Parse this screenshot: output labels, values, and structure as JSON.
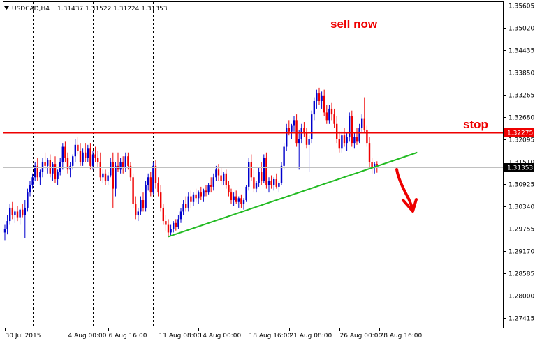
{
  "header": {
    "symbol": "USDCAD,H4",
    "ohlc": "1.31437 1.31522 1.31224 1.31353"
  },
  "colors": {
    "bull": "#0000cc",
    "bear": "#ee0000",
    "stop_line": "#ee0000",
    "trend_line": "#22bb22",
    "current_price_line": "#c0c0c0",
    "arrow": "#ee0000",
    "annotation": "#ee0000"
  },
  "chart_data": {
    "type": "candlestick",
    "timeframe": "H4",
    "ylim": [
      1.2715,
      1.357
    ],
    "y_ticks": [
      "1.35605",
      "1.35020",
      "1.34435",
      "1.33850",
      "1.33265",
      "1.32680",
      "1.32095",
      "1.31510",
      "1.30925",
      "1.30340",
      "1.29755",
      "1.29170",
      "1.28585",
      "1.28000",
      "1.27415"
    ],
    "x_ticks": [
      {
        "label": "30 Jul 2015",
        "bar": 0
      },
      {
        "label": "4 Aug 00:00",
        "bar": 25
      },
      {
        "label": "6 Aug 16:00",
        "bar": 41
      },
      {
        "label": "11 Aug 08:00",
        "bar": 61
      },
      {
        "label": "14 Aug 00:00",
        "bar": 77
      },
      {
        "label": "18 Aug 16:00",
        "bar": 97
      },
      {
        "label": "21 Aug 08:00",
        "bar": 113
      },
      {
        "label": "26 Aug 00:00",
        "bar": 133
      },
      {
        "label": "28 Aug 16:00",
        "bar": 149
      }
    ],
    "separator_bars": [
      11,
      35,
      59,
      83,
      107,
      131,
      155,
      190
    ],
    "stop_level": {
      "label": "1.32275",
      "price": 1.32275
    },
    "current_price": {
      "label": "1.31353",
      "price": 1.31353
    },
    "trendline": {
      "start": {
        "bar": 65,
        "price": 1.2954
      },
      "end": {
        "bar": 164,
        "price": 1.3175
      }
    },
    "annotations": [
      {
        "key": "sell",
        "text": "sell now"
      },
      {
        "key": "stop",
        "text": "stop"
      }
    ],
    "candles": [
      [
        1.2965,
        1.2985,
        1.2945,
        1.2975
      ],
      [
        1.2975,
        1.301,
        1.296,
        1.2995
      ],
      [
        1.2995,
        1.304,
        1.2985,
        1.303
      ],
      [
        1.303,
        1.3045,
        1.3,
        1.301
      ],
      [
        1.301,
        1.3025,
        1.299,
        1.302
      ],
      [
        1.302,
        1.3035,
        1.2995,
        1.3005
      ],
      [
        1.3005,
        1.303,
        1.2985,
        1.3025
      ],
      [
        1.3025,
        1.304,
        1.3005,
        1.301
      ],
      [
        1.301,
        1.305,
        1.295,
        1.303
      ],
      [
        1.303,
        1.308,
        1.302,
        1.307
      ],
      [
        1.307,
        1.31,
        1.306,
        1.309
      ],
      [
        1.309,
        1.312,
        1.308,
        1.311
      ],
      [
        1.311,
        1.315,
        1.31,
        1.314
      ],
      [
        1.314,
        1.316,
        1.31,
        1.311
      ],
      [
        1.311,
        1.313,
        1.309,
        1.3125
      ],
      [
        1.3125,
        1.316,
        1.311,
        1.315
      ],
      [
        1.315,
        1.3175,
        1.313,
        1.314
      ],
      [
        1.314,
        1.316,
        1.312,
        1.3155
      ],
      [
        1.3155,
        1.317,
        1.311,
        1.312
      ],
      [
        1.312,
        1.315,
        1.31,
        1.3145
      ],
      [
        1.3145,
        1.3165,
        1.3095,
        1.3105
      ],
      [
        1.3105,
        1.313,
        1.309,
        1.3125
      ],
      [
        1.3125,
        1.316,
        1.3115,
        1.315
      ],
      [
        1.315,
        1.32,
        1.313,
        1.319
      ],
      [
        1.319,
        1.3205,
        1.315,
        1.316
      ],
      [
        1.316,
        1.3175,
        1.312,
        1.313
      ],
      [
        1.313,
        1.315,
        1.311,
        1.314
      ],
      [
        1.314,
        1.317,
        1.313,
        1.3165
      ],
      [
        1.3165,
        1.321,
        1.315,
        1.3195
      ],
      [
        1.3195,
        1.3215,
        1.317,
        1.318
      ],
      [
        1.318,
        1.32,
        1.314,
        1.315
      ],
      [
        1.315,
        1.3185,
        1.314,
        1.3175
      ],
      [
        1.3175,
        1.32,
        1.315,
        1.316
      ],
      [
        1.316,
        1.3195,
        1.315,
        1.3185
      ],
      [
        1.3185,
        1.32,
        1.313,
        1.314
      ],
      [
        1.314,
        1.318,
        1.313,
        1.317
      ],
      [
        1.317,
        1.319,
        1.315,
        1.316
      ],
      [
        1.316,
        1.318,
        1.3135,
        1.315
      ],
      [
        1.315,
        1.3175,
        1.31,
        1.311
      ],
      [
        1.311,
        1.313,
        1.3095,
        1.312
      ],
      [
        1.312,
        1.313,
        1.309,
        1.31
      ],
      [
        1.31,
        1.3125,
        1.309,
        1.3115
      ],
      [
        1.3115,
        1.316,
        1.311,
        1.315
      ],
      [
        1.315,
        1.3175,
        1.303,
        1.308
      ],
      [
        1.308,
        1.315,
        1.306,
        1.314
      ],
      [
        1.314,
        1.3175,
        1.3125,
        1.313
      ],
      [
        1.313,
        1.316,
        1.312,
        1.315
      ],
      [
        1.315,
        1.3165,
        1.312,
        1.3135
      ],
      [
        1.3135,
        1.3175,
        1.3125,
        1.3165
      ],
      [
        1.3165,
        1.3175,
        1.313,
        1.314
      ],
      [
        1.314,
        1.315,
        1.31,
        1.311
      ],
      [
        1.311,
        1.312,
        1.303,
        1.304
      ],
      [
        1.304,
        1.306,
        1.3,
        1.301
      ],
      [
        1.301,
        1.303,
        1.2995,
        1.302
      ],
      [
        1.302,
        1.306,
        1.301,
        1.305
      ],
      [
        1.305,
        1.307,
        1.302,
        1.303
      ],
      [
        1.303,
        1.31,
        1.302,
        1.309
      ],
      [
        1.309,
        1.312,
        1.3075,
        1.311
      ],
      [
        1.311,
        1.3125,
        1.306,
        1.307
      ],
      [
        1.307,
        1.315,
        1.3065,
        1.314
      ],
      [
        1.314,
        1.3155,
        1.308,
        1.3095
      ],
      [
        1.3095,
        1.311,
        1.306,
        1.307
      ],
      [
        1.307,
        1.309,
        1.302,
        1.303
      ],
      [
        1.303,
        1.304,
        1.2985,
        1.2995
      ],
      [
        1.2995,
        1.301,
        1.297,
        1.2985
      ],
      [
        1.2985,
        1.3,
        1.2955,
        1.2965
      ],
      [
        1.2965,
        1.2985,
        1.2955,
        1.2975
      ],
      [
        1.2975,
        1.2995,
        1.2965,
        1.299
      ],
      [
        1.299,
        1.3,
        1.297,
        1.298
      ],
      [
        1.298,
        1.301,
        1.2975,
        1.3
      ],
      [
        1.3,
        1.303,
        1.299,
        1.302
      ],
      [
        1.302,
        1.305,
        1.301,
        1.304
      ],
      [
        1.304,
        1.306,
        1.302,
        1.303
      ],
      [
        1.303,
        1.307,
        1.302,
        1.306
      ],
      [
        1.306,
        1.3075,
        1.303,
        1.3045
      ],
      [
        1.3045,
        1.307,
        1.3035,
        1.3065
      ],
      [
        1.3065,
        1.308,
        1.3045,
        1.3055
      ],
      [
        1.3055,
        1.3075,
        1.304,
        1.307
      ],
      [
        1.307,
        1.3085,
        1.305,
        1.306
      ],
      [
        1.306,
        1.308,
        1.3045,
        1.3075
      ],
      [
        1.3075,
        1.309,
        1.306,
        1.307
      ],
      [
        1.307,
        1.3095,
        1.3065,
        1.309
      ],
      [
        1.309,
        1.311,
        1.307,
        1.3085
      ],
      [
        1.3085,
        1.312,
        1.3075,
        1.311
      ],
      [
        1.311,
        1.314,
        1.31,
        1.313
      ],
      [
        1.313,
        1.3145,
        1.31,
        1.3115
      ],
      [
        1.3115,
        1.3135,
        1.309,
        1.31
      ],
      [
        1.31,
        1.3125,
        1.309,
        1.312
      ],
      [
        1.312,
        1.313,
        1.308,
        1.309
      ],
      [
        1.309,
        1.31,
        1.306,
        1.307
      ],
      [
        1.307,
        1.308,
        1.304,
        1.305
      ],
      [
        1.305,
        1.307,
        1.3035,
        1.306
      ],
      [
        1.306,
        1.3075,
        1.304,
        1.3045
      ],
      [
        1.3045,
        1.306,
        1.303,
        1.3055
      ],
      [
        1.3055,
        1.3065,
        1.303,
        1.304
      ],
      [
        1.304,
        1.3055,
        1.3025,
        1.305
      ],
      [
        1.305,
        1.309,
        1.3045,
        1.3085
      ],
      [
        1.3085,
        1.316,
        1.3075,
        1.315
      ],
      [
        1.315,
        1.317,
        1.31,
        1.311
      ],
      [
        1.311,
        1.313,
        1.307,
        1.308
      ],
      [
        1.308,
        1.31,
        1.307,
        1.3095
      ],
      [
        1.3095,
        1.3135,
        1.3085,
        1.3125
      ],
      [
        1.3125,
        1.315,
        1.309,
        1.31
      ],
      [
        1.31,
        1.317,
        1.3095,
        1.316
      ],
      [
        1.316,
        1.3175,
        1.308,
        1.309
      ],
      [
        1.309,
        1.311,
        1.307,
        1.31
      ],
      [
        1.31,
        1.3115,
        1.308,
        1.309
      ],
      [
        1.309,
        1.311,
        1.3075,
        1.3105
      ],
      [
        1.3105,
        1.312,
        1.308,
        1.3085
      ],
      [
        1.3085,
        1.31,
        1.307,
        1.3095
      ],
      [
        1.3095,
        1.315,
        1.309,
        1.314
      ],
      [
        1.314,
        1.32,
        1.313,
        1.319
      ],
      [
        1.319,
        1.325,
        1.318,
        1.324
      ],
      [
        1.324,
        1.326,
        1.322,
        1.323
      ],
      [
        1.323,
        1.325,
        1.321,
        1.3245
      ],
      [
        1.3245,
        1.327,
        1.323,
        1.326
      ],
      [
        1.326,
        1.3275,
        1.319,
        1.32
      ],
      [
        1.32,
        1.3235,
        1.313,
        1.321
      ],
      [
        1.321,
        1.325,
        1.32,
        1.324
      ],
      [
        1.324,
        1.3255,
        1.3215,
        1.3225
      ],
      [
        1.3225,
        1.324,
        1.3185,
        1.3195
      ],
      [
        1.3195,
        1.322,
        1.3125,
        1.321
      ],
      [
        1.321,
        1.3285,
        1.32,
        1.3275
      ],
      [
        1.3275,
        1.332,
        1.326,
        1.331
      ],
      [
        1.331,
        1.334,
        1.329,
        1.333
      ],
      [
        1.333,
        1.3345,
        1.33,
        1.331
      ],
      [
        1.331,
        1.3335,
        1.329,
        1.3325
      ],
      [
        1.3325,
        1.334,
        1.327,
        1.328
      ],
      [
        1.328,
        1.33,
        1.325,
        1.326
      ],
      [
        1.326,
        1.33,
        1.325,
        1.329
      ],
      [
        1.329,
        1.3305,
        1.326,
        1.3275
      ],
      [
        1.3275,
        1.329,
        1.324,
        1.325
      ],
      [
        1.325,
        1.327,
        1.32,
        1.321
      ],
      [
        1.321,
        1.323,
        1.3175,
        1.3185
      ],
      [
        1.3185,
        1.323,
        1.3175,
        1.322
      ],
      [
        1.322,
        1.324,
        1.319,
        1.32
      ],
      [
        1.32,
        1.3225,
        1.318,
        1.3215
      ],
      [
        1.3215,
        1.328,
        1.3205,
        1.327
      ],
      [
        1.327,
        1.3285,
        1.319,
        1.32
      ],
      [
        1.32,
        1.3225,
        1.3185,
        1.3215
      ],
      [
        1.3215,
        1.324,
        1.3195,
        1.3205
      ],
      [
        1.3205,
        1.325,
        1.32,
        1.324
      ],
      [
        1.324,
        1.3275,
        1.323,
        1.3265
      ],
      [
        1.3265,
        1.332,
        1.3225,
        1.3235
      ],
      [
        1.3235,
        1.3245,
        1.319,
        1.32
      ],
      [
        1.32,
        1.3215,
        1.3135,
        1.315
      ],
      [
        1.315,
        1.316,
        1.312,
        1.3135
      ],
      [
        1.3135,
        1.315,
        1.312,
        1.3145
      ],
      [
        1.3145,
        1.3152,
        1.3122,
        1.3135
      ]
    ]
  }
}
